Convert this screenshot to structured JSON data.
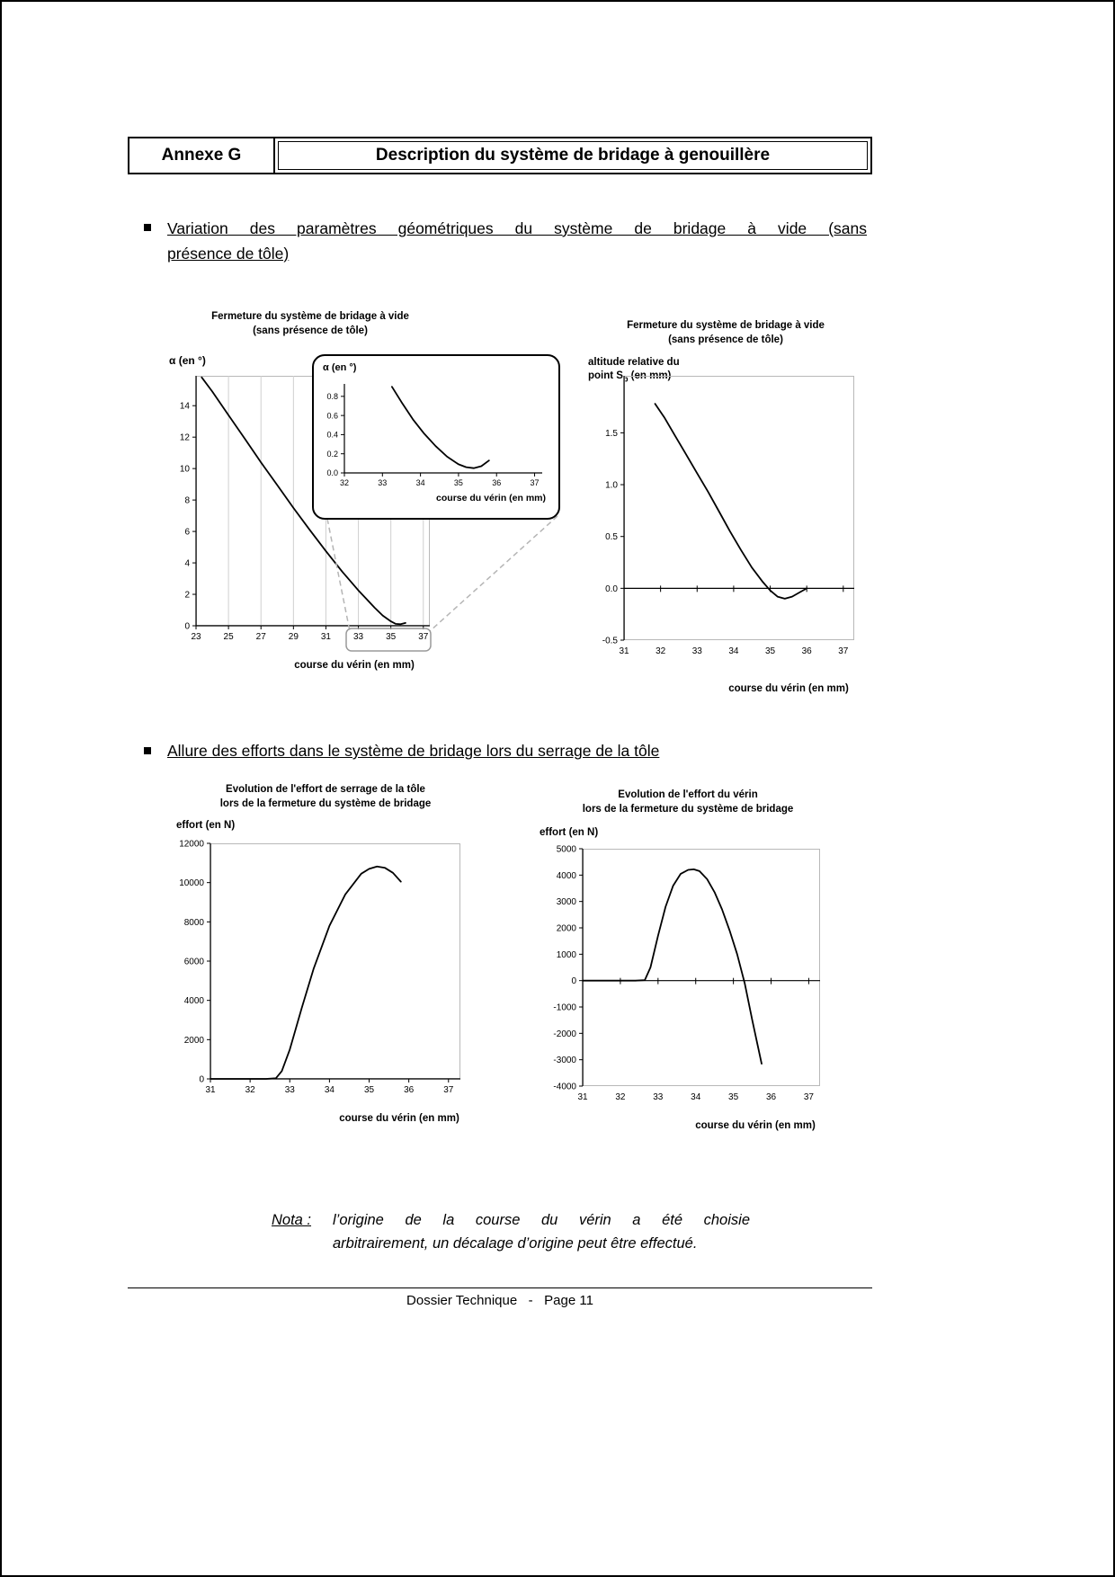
{
  "page": {
    "header": {
      "annexe": "Annexe G",
      "title": "Description du système de bridage à genouillère"
    },
    "section1": {
      "heading_line1": "Variation des paramètres géométriques du système de bridage à vide (sans",
      "heading_line2": "présence de tôle)"
    },
    "section2": {
      "heading": "Allure des efforts dans le système de bridage lors du serrage de la tôle"
    },
    "nota": {
      "label": "Nota :",
      "line1": "l’origine de la course du vérin a été choisie",
      "line2": "arbitrairement, un décalage d’origine peut être effectué."
    },
    "footer": {
      "text": "Dossier Technique   -   Page 11"
    }
  },
  "chart_data": [
    {
      "id": "alpha-main",
      "type": "line",
      "title": "Fermeture du système de bridage à vide",
      "subtitle": "(sans présence de tôle)",
      "ylabel": "α (en °)",
      "xlabel": "course du vérin (en mm)",
      "xlim": [
        23,
        37.4
      ],
      "ylim": [
        0,
        15.9
      ],
      "xticks": [
        23,
        25,
        27,
        29,
        31,
        33,
        35,
        37
      ],
      "xtick_labels": [
        "23",
        "25",
        "27",
        "29",
        "31",
        "33",
        "35",
        "37"
      ],
      "yticks": [
        0,
        2,
        4,
        6,
        8,
        10,
        12,
        14
      ],
      "ytick_labels": [
        "0",
        "2",
        "4",
        "6",
        "8",
        "10",
        "12",
        "14"
      ],
      "vgrid": true,
      "frame": true,
      "zero_axis": false,
      "x": [
        23.35,
        24,
        25,
        26,
        27,
        28,
        29,
        30,
        31,
        32,
        33,
        33.5,
        34,
        34.5,
        35,
        35.3,
        35.6,
        35.9
      ],
      "y": [
        15.8,
        14.9,
        13.4,
        11.9,
        10.4,
        8.95,
        7.5,
        6.1,
        4.75,
        3.45,
        2.25,
        1.7,
        1.15,
        0.65,
        0.28,
        0.12,
        0.1,
        0.18
      ]
    },
    {
      "id": "alpha-zoom-inset",
      "type": "line",
      "title": "",
      "ylabel": "α (en °)",
      "xlabel": "course du vérin (en mm)",
      "xlim": [
        32,
        37.2
      ],
      "ylim": [
        0,
        0.93
      ],
      "xticks": [
        32,
        33,
        34,
        35,
        36,
        37
      ],
      "xtick_labels": [
        "32",
        "33",
        "34",
        "35",
        "36",
        "37"
      ],
      "yticks": [
        0,
        0.2,
        0.4,
        0.6,
        0.8
      ],
      "ytick_labels": [
        "0.0",
        "0.2",
        "0.4",
        "0.6",
        "0.8"
      ],
      "vgrid": false,
      "frame": false,
      "zero_axis": false,
      "x": [
        33.25,
        33.5,
        33.8,
        34.1,
        34.4,
        34.7,
        35.0,
        35.2,
        35.4,
        35.6,
        35.8
      ],
      "y": [
        0.9,
        0.74,
        0.56,
        0.41,
        0.28,
        0.17,
        0.09,
        0.06,
        0.05,
        0.07,
        0.13
      ]
    },
    {
      "id": "altitude-sb",
      "type": "line",
      "title": "Fermeture du système de bridage à vide",
      "subtitle": "(sans présence de tôle)",
      "ylabel_line1": "altitude relative du",
      "ylabel_line2_pre": "point S",
      "ylabel_sub": "b",
      "ylabel_line2_post": " (en mm)",
      "xlabel": "course du vérin (en mm)",
      "xlim": [
        31,
        37.3
      ],
      "ylim": [
        -0.5,
        2.05
      ],
      "xticks": [
        31,
        32,
        33,
        34,
        35,
        36,
        37
      ],
      "xtick_labels": [
        "31",
        "32",
        "33",
        "34",
        "35",
        "36",
        "37"
      ],
      "yticks": [
        -0.5,
        0,
        0.5,
        1,
        1.5
      ],
      "ytick_labels": [
        "-0.5",
        "0.0",
        "0.5",
        "1.0",
        "1.5"
      ],
      "vgrid": false,
      "frame": true,
      "zero_axis": true,
      "x": [
        31.85,
        32.1,
        32.4,
        32.7,
        33.0,
        33.3,
        33.6,
        33.9,
        34.2,
        34.5,
        34.8,
        35.0,
        35.2,
        35.4,
        35.6,
        35.8,
        36.0
      ],
      "y": [
        1.78,
        1.65,
        1.47,
        1.29,
        1.11,
        0.93,
        0.74,
        0.55,
        0.37,
        0.2,
        0.06,
        -0.02,
        -0.08,
        -0.1,
        -0.08,
        -0.04,
        0.0
      ]
    },
    {
      "id": "effort-serrage",
      "type": "line",
      "title": "Evolution de l'effort de serrage de la tôle",
      "subtitle": "lors de la fermeture du système de bridage",
      "ylabel": "effort (en N)",
      "xlabel": "course du vérin (en mm)",
      "xlim": [
        31,
        37.3
      ],
      "ylim": [
        0,
        12000
      ],
      "xticks": [
        31,
        32,
        33,
        34,
        35,
        36,
        37
      ],
      "xtick_labels": [
        "31",
        "32",
        "33",
        "34",
        "35",
        "36",
        "37"
      ],
      "yticks": [
        0,
        2000,
        4000,
        6000,
        8000,
        10000,
        12000
      ],
      "ytick_labels": [
        "0",
        "2000",
        "4000",
        "6000",
        "8000",
        "10000",
        "12000"
      ],
      "vgrid": false,
      "frame": true,
      "zero_axis": false,
      "x": [
        31.0,
        31.5,
        32.0,
        32.4,
        32.65,
        32.8,
        33.0,
        33.3,
        33.6,
        34.0,
        34.4,
        34.8,
        35.0,
        35.2,
        35.4,
        35.6,
        35.8
      ],
      "y": [
        0,
        0,
        0,
        0,
        30,
        400,
        1500,
        3600,
        5600,
        7800,
        9400,
        10450,
        10700,
        10820,
        10750,
        10500,
        10050
      ]
    },
    {
      "id": "effort-verin",
      "type": "line",
      "title": "Evolution de l'effort du vérin",
      "subtitle": "lors de la fermeture du système de bridage",
      "ylabel": "effort (en N)",
      "xlabel": "course du vérin (en mm)",
      "xlim": [
        31,
        37.3
      ],
      "ylim": [
        -4000,
        5000
      ],
      "xticks": [
        31,
        32,
        33,
        34,
        35,
        36,
        37
      ],
      "xtick_labels": [
        "31",
        "32",
        "33",
        "34",
        "35",
        "36",
        "37"
      ],
      "yticks": [
        -4000,
        -3000,
        -2000,
        -1000,
        0,
        1000,
        2000,
        3000,
        4000,
        5000
      ],
      "ytick_labels": [
        "-4000",
        "-3000",
        "-2000",
        "-1000",
        "0",
        "1000",
        "2000",
        "3000",
        "4000",
        "5000"
      ],
      "vgrid": false,
      "frame": true,
      "zero_axis": true,
      "x": [
        31.0,
        31.5,
        32.0,
        32.4,
        32.65,
        32.8,
        33.0,
        33.2,
        33.4,
        33.6,
        33.8,
        33.95,
        34.1,
        34.3,
        34.5,
        34.7,
        34.9,
        35.1,
        35.3,
        35.5,
        35.65,
        35.75
      ],
      "y": [
        0,
        0,
        0,
        0,
        20,
        500,
        1700,
        2800,
        3600,
        4050,
        4200,
        4220,
        4150,
        3850,
        3350,
        2700,
        1900,
        1000,
        -100,
        -1500,
        -2500,
        -3150
      ]
    }
  ]
}
